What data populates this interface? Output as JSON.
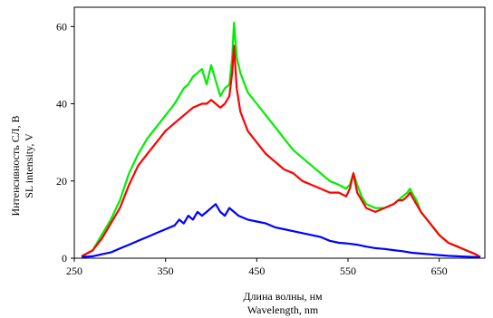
{
  "chart_data": {
    "type": "line",
    "title": "",
    "xlabel": [
      "Длина волны, нм",
      "Wavelength, nm"
    ],
    "ylabel": [
      "Интенсивность СЛ, В",
      "SL intensity, V"
    ],
    "xlim": [
      250,
      700
    ],
    "ylim": [
      0,
      65
    ],
    "x_ticks": [
      250,
      350,
      450,
      550,
      650
    ],
    "x_tick_labels": [
      "250",
      "350",
      "450",
      "550",
      "650"
    ],
    "y_ticks": [
      0,
      20,
      40,
      60
    ],
    "y_tick_labels": [
      "0",
      "20",
      "40",
      "60"
    ],
    "grid": false,
    "legend": "none",
    "series": [
      {
        "color": "#00ee00",
        "x": [
          258,
          270,
          280,
          290,
          300,
          310,
          320,
          330,
          340,
          350,
          360,
          365,
          370,
          375,
          380,
          385,
          390,
          395,
          400,
          405,
          410,
          415,
          420,
          423,
          425,
          428,
          432,
          440,
          450,
          460,
          470,
          480,
          490,
          500,
          510,
          520,
          530,
          540,
          548,
          552,
          556,
          560,
          565,
          570,
          580,
          590,
          600,
          605,
          610,
          615,
          618,
          620,
          625,
          630,
          640,
          650,
          660,
          670,
          680,
          690,
          695
        ],
        "y": [
          0.5,
          2,
          6,
          10,
          15,
          22,
          27,
          31,
          34,
          37,
          40,
          42,
          44,
          45,
          47,
          48,
          49,
          45,
          50,
          46,
          42,
          44,
          45,
          52,
          61,
          52,
          48,
          43,
          40,
          37,
          34,
          31,
          28,
          26,
          24,
          22,
          20,
          19,
          18,
          19,
          22,
          19,
          16,
          14,
          13,
          13,
          14,
          15,
          16,
          17,
          18,
          17,
          15,
          12,
          9,
          6,
          4,
          3,
          2,
          1,
          0.3
        ]
      },
      {
        "color": "#ff0000",
        "x": [
          258,
          270,
          280,
          290,
          300,
          310,
          320,
          330,
          340,
          350,
          360,
          370,
          380,
          390,
          395,
          400,
          405,
          410,
          415,
          420,
          423,
          425,
          428,
          432,
          440,
          450,
          460,
          470,
          480,
          490,
          500,
          510,
          520,
          530,
          540,
          548,
          552,
          556,
          560,
          565,
          570,
          580,
          590,
          600,
          605,
          610,
          615,
          618,
          620,
          625,
          630,
          640,
          650,
          660,
          670,
          680,
          690,
          695
        ],
        "y": [
          0.5,
          2,
          5,
          9,
          13,
          19,
          24,
          27,
          30,
          33,
          35,
          37,
          39,
          40,
          40,
          41,
          40,
          39,
          40,
          42,
          48,
          55,
          44,
          38,
          33,
          30,
          27,
          25,
          23,
          22,
          20,
          19,
          18,
          17,
          17,
          16,
          18,
          22,
          17,
          15,
          13,
          12,
          13,
          14,
          15,
          15,
          16,
          17,
          16,
          14,
          12,
          9,
          6,
          4,
          3,
          2,
          1,
          0.3
        ]
      },
      {
        "color": "#0000ff",
        "x": [
          258,
          270,
          280,
          290,
          300,
          310,
          320,
          330,
          340,
          350,
          360,
          365,
          370,
          375,
          380,
          385,
          390,
          395,
          400,
          405,
          410,
          415,
          420,
          425,
          430,
          440,
          450,
          460,
          470,
          480,
          490,
          500,
          510,
          520,
          530,
          540,
          550,
          560,
          570,
          580,
          590,
          600,
          610,
          620,
          630,
          640,
          650,
          660,
          670,
          680,
          690,
          695
        ],
        "y": [
          0.3,
          0.5,
          1,
          1.5,
          2.5,
          3.5,
          4.5,
          5.5,
          6.5,
          7.5,
          8.5,
          10,
          9,
          11,
          10,
          12,
          11,
          12,
          13,
          14,
          12,
          11,
          13,
          12,
          11,
          10,
          9.5,
          9,
          8,
          7.5,
          7,
          6.5,
          6,
          5.5,
          4.5,
          4,
          3.8,
          3.5,
          3,
          2.6,
          2.4,
          2.1,
          1.8,
          1.4,
          1.2,
          1,
          0.8,
          0.6,
          0.5,
          0.4,
          0.3,
          0.2
        ]
      }
    ]
  }
}
